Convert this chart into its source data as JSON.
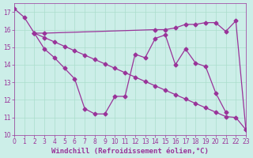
{
  "background_color": "#cceee8",
  "grid_color": "#aaddcc",
  "line_color": "#993399",
  "markersize": 2.5,
  "linewidth": 0.9,
  "series1_x": [
    0,
    1,
    2,
    3,
    4,
    5,
    6,
    7,
    8,
    9,
    10,
    11,
    12,
    13,
    14,
    15,
    16,
    17,
    18,
    19,
    20,
    21
  ],
  "series1_y": [
    17.2,
    16.7,
    15.8,
    14.9,
    14.4,
    13.8,
    13.2,
    11.5,
    11.2,
    11.2,
    12.2,
    12.2,
    14.6,
    14.4,
    15.5,
    15.7,
    14.0,
    14.9,
    14.1,
    13.9,
    12.4,
    11.3
  ],
  "series2_x": [
    2,
    3,
    4,
    5,
    6,
    7,
    8,
    9,
    10,
    11,
    12,
    13,
    14,
    15,
    16,
    17,
    18,
    19,
    20,
    21,
    22,
    23
  ],
  "series2_y": [
    15.8,
    15.55,
    15.3,
    15.05,
    14.8,
    14.55,
    14.3,
    14.05,
    13.8,
    13.55,
    13.3,
    13.05,
    12.8,
    12.55,
    12.3,
    12.05,
    11.8,
    11.55,
    11.3,
    11.05,
    11.0,
    10.3
  ],
  "series3_x": [
    2,
    3,
    14,
    15,
    16,
    17,
    18,
    19,
    20,
    21,
    22,
    23
  ],
  "series3_y": [
    15.8,
    15.8,
    16.0,
    16.0,
    16.1,
    16.3,
    16.3,
    16.4,
    16.4,
    15.9,
    16.5,
    10.3
  ],
  "xlabel": "Windchill (Refroidissement éolien,°C)",
  "xlim": [
    0,
    23
  ],
  "ylim": [
    10,
    17.5
  ],
  "yticks": [
    10,
    11,
    12,
    13,
    14,
    15,
    16,
    17
  ],
  "xticks": [
    0,
    1,
    2,
    3,
    4,
    5,
    6,
    7,
    8,
    9,
    10,
    11,
    12,
    13,
    14,
    15,
    16,
    17,
    18,
    19,
    20,
    21,
    22,
    23
  ],
  "tick_color": "#993399",
  "tick_fontsize": 5.5,
  "xlabel_fontsize": 6.5,
  "label_color": "#993399"
}
